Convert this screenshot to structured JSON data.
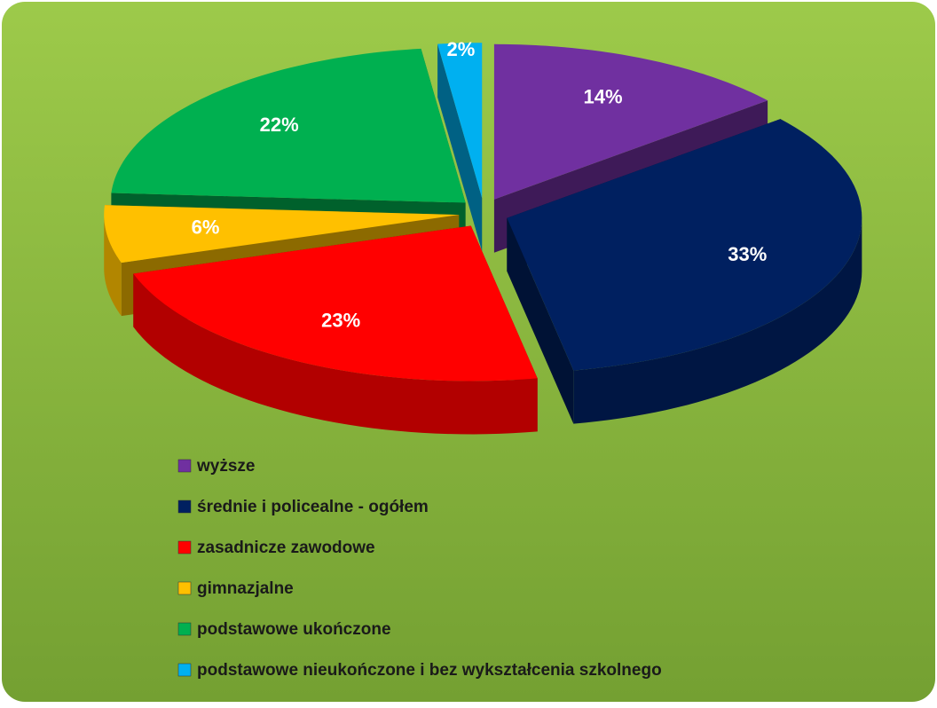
{
  "chart_data": {
    "type": "pie",
    "categories": [
      "wyższe",
      "średnie i policealne - ogółem",
      "zasadnicze zawodowe",
      "gimnazjalne",
      "podstawowe ukończone",
      "podstawowe nieukończone i bez wykształcenia szkolnego"
    ],
    "values": [
      14,
      33,
      23,
      6,
      22,
      2
    ],
    "value_labels": [
      "14%",
      "33%",
      "23%",
      "6%",
      "22%",
      "2%"
    ],
    "colors": [
      "#7030a0",
      "#002060",
      "#ff0000",
      "#ffc000",
      "#00b050",
      "#00b0f0"
    ]
  }
}
